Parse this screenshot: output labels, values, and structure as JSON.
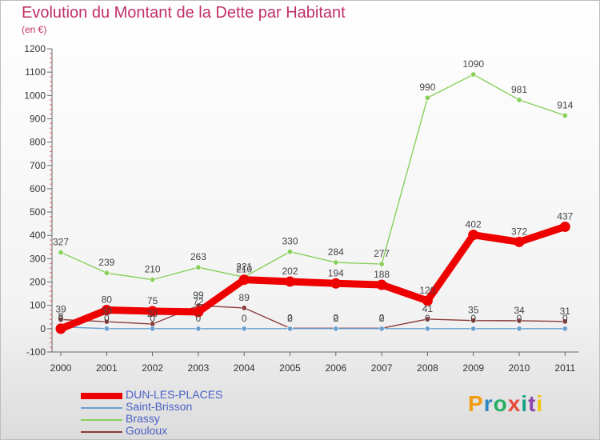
{
  "title": "Evolution du Montant de la Dette par Habitant",
  "unit": "(en €)",
  "logo": {
    "text": "Proxiti",
    "colors": [
      "#f39c12",
      "#2e86c1",
      "#27ae60",
      "#e74c3c",
      "#16a085",
      "#8e44ad",
      "#f1c40f"
    ]
  },
  "chart_data": {
    "type": "line",
    "title": "Evolution du Montant de la Dette par Habitant",
    "ylabel": "(en €)",
    "xlabel": "",
    "x": [
      "2000",
      "2001",
      "2002",
      "2003",
      "2004",
      "2005",
      "2006",
      "2007",
      "2008",
      "2009",
      "2010",
      "2011"
    ],
    "ylim": [
      -100,
      1200
    ],
    "yticks": [
      -100,
      0,
      100,
      200,
      300,
      400,
      500,
      600,
      700,
      800,
      900,
      1000,
      1100,
      1200
    ],
    "grid": false,
    "legend_position": "bottom-left",
    "series": [
      {
        "name": "DUN-LES-PLACES",
        "color": "#ee0000",
        "values": [
          0,
          80,
          75,
          72,
          210,
          202,
          194,
          188,
          120,
          402,
          372,
          437
        ],
        "labels": [
          "0",
          "80",
          "75",
          "72",
          "210",
          "202",
          "194",
          "188",
          "120",
          "402",
          "372",
          "437"
        ]
      },
      {
        "name": "Saint-Brisson",
        "color": "#6a9fcf",
        "values": [
          8,
          0,
          0,
          0,
          0,
          0,
          0,
          0,
          0,
          0,
          0,
          0
        ],
        "labels": [
          "8",
          "0",
          "0",
          "0",
          "0",
          "0",
          "0",
          "0",
          "0",
          "0",
          "0",
          "0"
        ]
      },
      {
        "name": "Brassy",
        "color": "#88d05a",
        "values": [
          327,
          239,
          210,
          263,
          221,
          330,
          284,
          277,
          990,
          1090,
          981,
          914
        ],
        "labels": [
          "327",
          "239",
          "210",
          "263",
          "221",
          "330",
          "284",
          "277",
          "990",
          "1090",
          "981",
          "914"
        ]
      },
      {
        "name": "Gouloux",
        "color": "#8b3a3a",
        "values": [
          39,
          30,
          20,
          99,
          89,
          2,
          2,
          2,
          41,
          35,
          34,
          31
        ],
        "labels": [
          "39",
          "30",
          "20",
          "99",
          "89",
          "2",
          "2",
          "2",
          "41",
          "35",
          "34",
          "31"
        ]
      }
    ]
  }
}
